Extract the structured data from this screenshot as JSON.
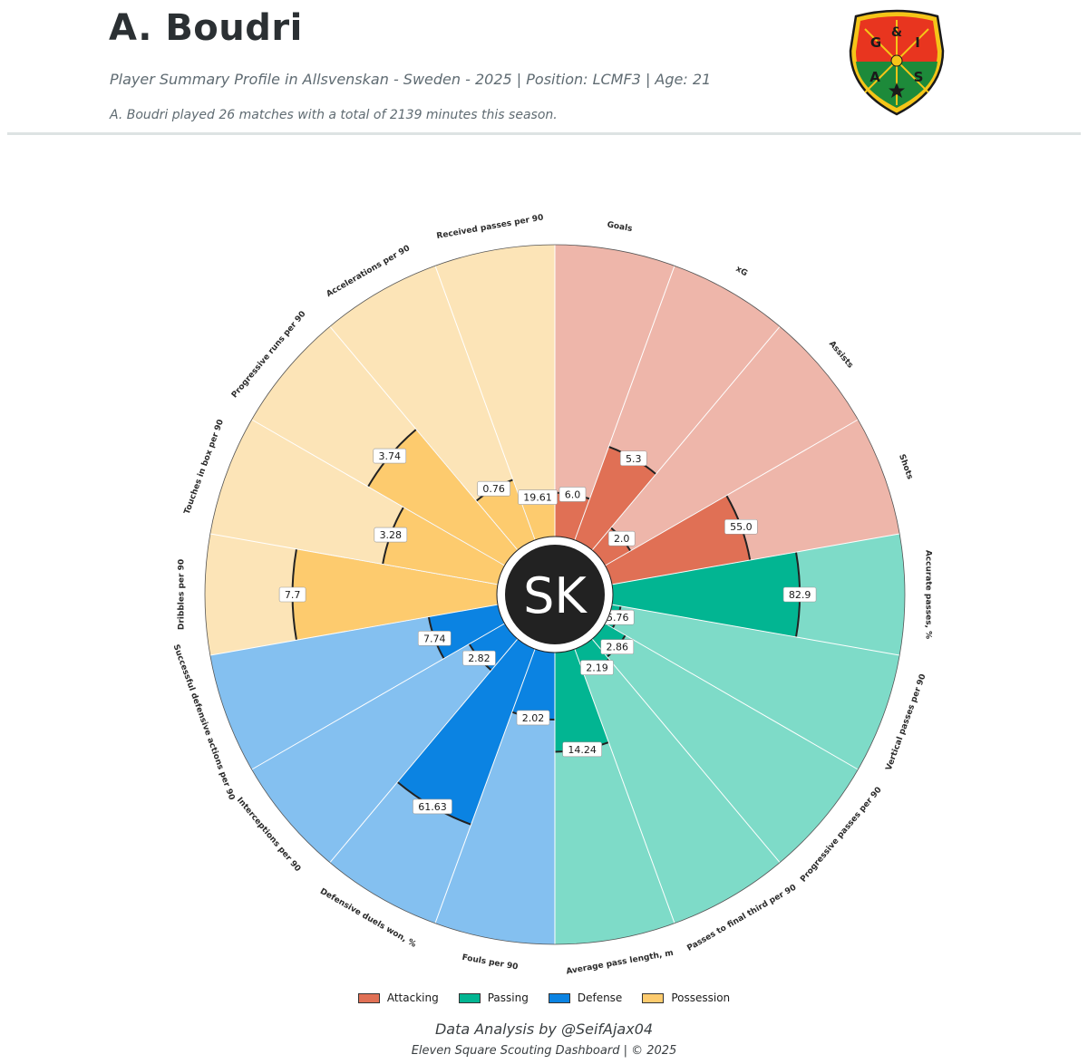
{
  "header": {
    "title": "A. Boudri",
    "subtitle": "Player Summary Profile in Allsvenskan - Sweden - 2025 | Position: LCMF3 | Age: 21",
    "summary": "A. Boudri played 26 matches with a total of 2139 minutes this season."
  },
  "logo": {
    "text": [
      "G",
      "&",
      "I",
      "A",
      "S"
    ],
    "colors": {
      "red": "#e8351f",
      "green": "#1d8a3a",
      "gold": "#f5c518",
      "dark": "#1a1a1a"
    }
  },
  "center_badge": {
    "text": "SK",
    "color": "#222222"
  },
  "chart_data": {
    "type": "polar-bar",
    "categories": [
      "Goals",
      "xG",
      "Assists",
      "Shots",
      "Accurate passes, %",
      "Vertical passes per 90",
      "Progressive passes per 90",
      "Passes to final third per 90",
      "Average pass length, m",
      "Fouls per 90",
      "Defensive duels won, %",
      "Interceptions per 90",
      "Successful defensive actions per 90",
      "Dribbles per 90",
      "Touches in box per 90",
      "Progressive runs per 90",
      "Accelerations per 90",
      "Received passes per 90"
    ],
    "groups": [
      "Attacking",
      "Attacking",
      "Attacking",
      "Attacking",
      "Passing",
      "Passing",
      "Passing",
      "Passing",
      "Passing",
      "Defense",
      "Defense",
      "Defense",
      "Defense",
      "Possession",
      "Possession",
      "Possession",
      "Possession",
      "Possession"
    ],
    "values": [
      6.0,
      5.3,
      2.0,
      55.0,
      82.9,
      5.76,
      2.86,
      2.19,
      14.24,
      2.02,
      61.63,
      2.82,
      7.74,
      7.7,
      3.28,
      3.74,
      0.76,
      19.61
    ],
    "value_labels": [
      "6.0",
      "5.3",
      "2.0",
      "55.0",
      "82.9",
      "5.76",
      "2.86",
      "2.19",
      "14.24",
      "2.02",
      "61.63",
      "2.82",
      "7.74",
      "7.7",
      "3.28",
      "3.74",
      "0.76",
      "19.61"
    ],
    "percentiles": [
      15,
      34,
      10,
      48,
      64,
      3,
      8,
      9,
      34,
      23,
      64,
      14,
      24,
      70,
      40,
      54,
      22,
      14
    ],
    "legend": [
      {
        "name": "Attacking",
        "color": "#e07055",
        "light": "#eeb6aa"
      },
      {
        "name": "Passing",
        "color": "#02b592",
        "light": "#7edbc8"
      },
      {
        "name": "Defense",
        "color": "#0b83e2",
        "light": "#84c0f0"
      },
      {
        "name": "Possession",
        "color": "#fdcb6e",
        "light": "#fce4b7"
      }
    ],
    "legend_placement": "bottom-center",
    "rlim": [
      0,
      100
    ]
  },
  "footer": {
    "credit": "Data Analysis by @SeifAjax04",
    "copyright": "Eleven Square Scouting Dashboard | © 2025"
  }
}
